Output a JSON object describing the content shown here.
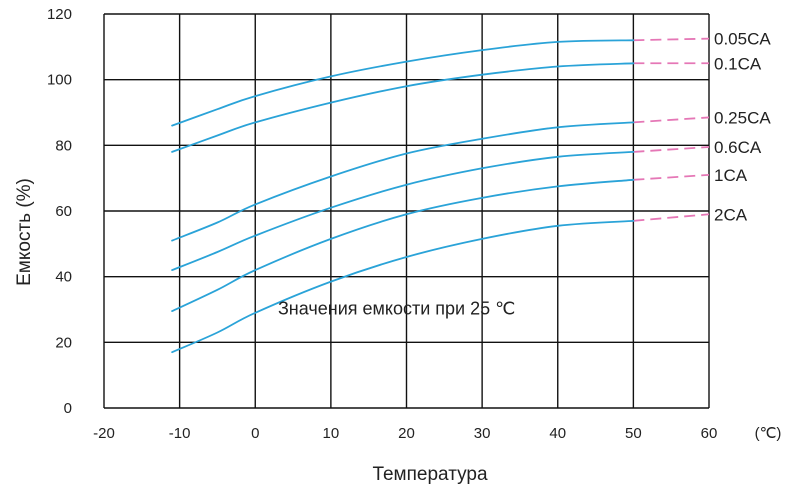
{
  "chart_data": {
    "type": "line",
    "xlabel": "Температура",
    "ylabel": "Емкость (%)",
    "x_unit": "(℃)",
    "xlim": [
      -20,
      60
    ],
    "ylim": [
      0,
      120
    ],
    "x_ticks": [
      "-20",
      "-10",
      "0",
      "10",
      "20",
      "30",
      "40",
      "50",
      "60"
    ],
    "y_ticks": [
      "0",
      "20",
      "40",
      "60",
      "80",
      "100",
      "120"
    ],
    "grid": true,
    "annotation": {
      "text": "Значения емкости при 25 ",
      "unit": "℃",
      "x": 3,
      "y": 28.5
    },
    "line_color": "#2aa3d8",
    "extension_color": "#e577b6",
    "series": [
      {
        "name": "0.05CA",
        "x": [
          -11,
          -5,
          0,
          10,
          20,
          30,
          40,
          50
        ],
        "values": [
          86,
          91,
          95,
          101,
          105.5,
          109,
          111.5,
          112
        ],
        "extension": {
          "x": [
            50,
            60
          ],
          "values": [
            112,
            112.5
          ]
        }
      },
      {
        "name": "0.1CA",
        "x": [
          -11,
          -5,
          0,
          10,
          20,
          30,
          40,
          50
        ],
        "values": [
          78,
          83,
          87,
          93,
          98,
          101.5,
          104,
          105
        ],
        "extension": {
          "x": [
            50,
            60
          ],
          "values": [
            105,
            105
          ]
        }
      },
      {
        "name": "0.25CA",
        "x": [
          -11,
          -5,
          0,
          10,
          20,
          30,
          40,
          50
        ],
        "values": [
          51,
          56.5,
          62,
          70.5,
          77.5,
          82,
          85.5,
          87
        ],
        "extension": {
          "x": [
            50,
            60
          ],
          "values": [
            87,
            88.5
          ]
        }
      },
      {
        "name": "0.6CA",
        "x": [
          -11,
          -5,
          0,
          10,
          20,
          30,
          40,
          50
        ],
        "values": [
          42,
          47.5,
          52.5,
          61,
          68,
          73,
          76.5,
          78
        ],
        "extension": {
          "x": [
            50,
            60
          ],
          "values": [
            78,
            79.5
          ]
        }
      },
      {
        "name": "1CA",
        "x": [
          -11,
          -5,
          0,
          10,
          20,
          30,
          40,
          50
        ],
        "values": [
          29.5,
          36,
          42,
          51.5,
          59,
          64,
          67.5,
          69.5
        ],
        "extension": {
          "x": [
            50,
            60
          ],
          "values": [
            69.5,
            71
          ]
        }
      },
      {
        "name": "2CA",
        "x": [
          -11,
          -5,
          0,
          10,
          20,
          30,
          40,
          50
        ],
        "values": [
          17,
          23,
          29,
          38.5,
          46,
          51.5,
          55.5,
          57
        ],
        "extension": {
          "x": [
            50,
            60
          ],
          "values": [
            57,
            59
          ]
        }
      }
    ]
  }
}
